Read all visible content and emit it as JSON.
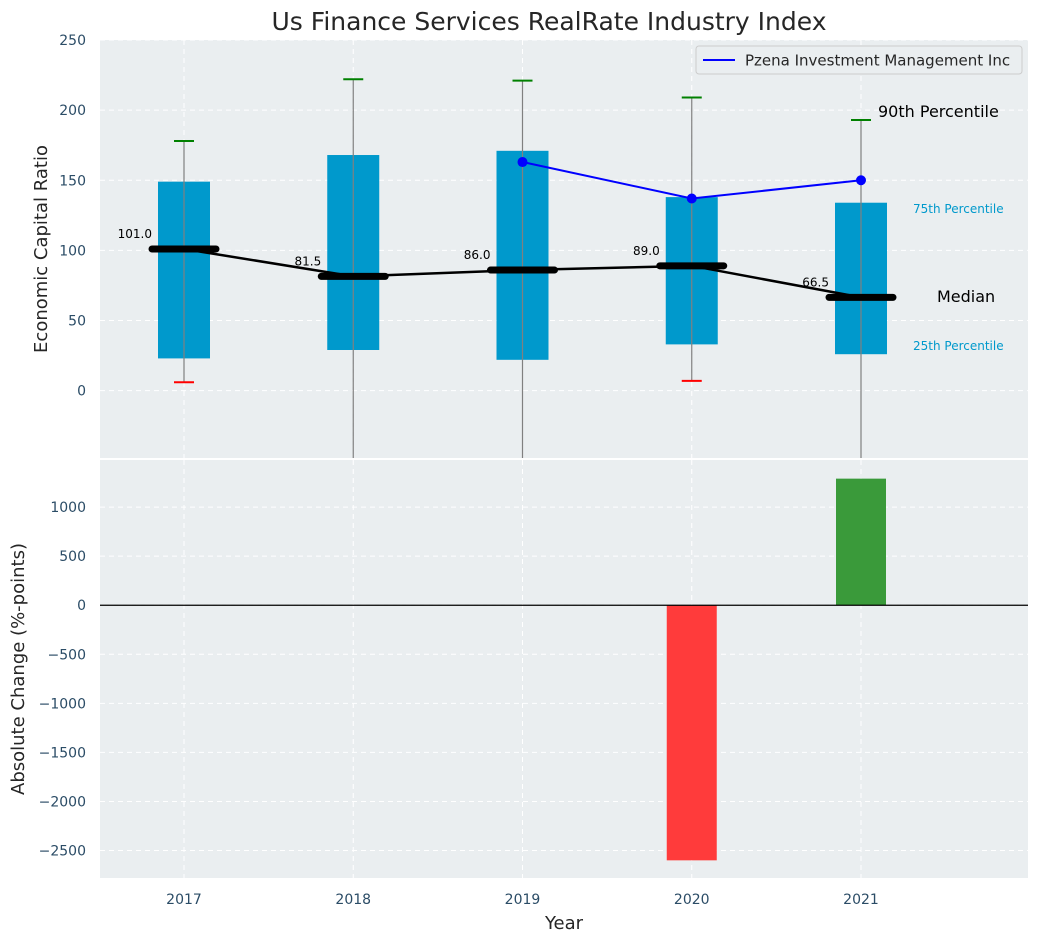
{
  "chart_data": [
    {
      "type": "box",
      "title": "Us Finance Services RealRate Industry Index",
      "ylabel": "Economic Capital Ratio",
      "xlabel": "",
      "ylim": [
        -48,
        250
      ],
      "yticks": [
        0,
        50,
        100,
        150,
        200,
        250
      ],
      "ytick_labels": [
        "0",
        "50",
        "100",
        "150",
        "200",
        "250"
      ],
      "grid": true,
      "legend_position": "top-right",
      "categories": [
        "2017",
        "2018",
        "2019",
        "2020",
        "2021"
      ],
      "percentile_10": [
        6,
        -48,
        -48,
        7,
        -48
      ],
      "percentile_25": [
        23,
        29,
        22,
        33,
        26
      ],
      "median": [
        101.0,
        81.5,
        86.0,
        89.0,
        66.5
      ],
      "median_labels": [
        "101.0",
        "81.5",
        "86.0",
        "89.0",
        "66.5"
      ],
      "percentile_75": [
        149,
        168,
        171,
        138,
        134
      ],
      "percentile_90": [
        178,
        222,
        221,
        209,
        193
      ],
      "series": [
        {
          "name": "Pzena Investment Management Inc",
          "x": [
            "2019",
            "2020",
            "2021"
          ],
          "values": [
            163,
            137,
            150
          ],
          "color": "#0000ff"
        }
      ],
      "annotations": {
        "p90": "90th Percentile",
        "p75": "75th Percentile",
        "median": "Median",
        "p25": "25th Percentile"
      },
      "colors": {
        "box": "#0099cc",
        "whisker": "#808080",
        "median": "#000000",
        "cap_high": "#008000",
        "cap_low": "#ff0000",
        "background": "#eaeef0",
        "grid": "#ffffff",
        "tick_text": "#2b4c66"
      }
    },
    {
      "type": "bar",
      "xlabel": "Year",
      "ylabel": "Absolute Change (%-points)",
      "ylim": [
        -2780,
        1480
      ],
      "yticks": [
        -2500,
        -2000,
        -1500,
        -1000,
        -500,
        0,
        500,
        1000
      ],
      "ytick_labels": [
        "−2500",
        "−2000",
        "−1500",
        "−1000",
        "−500",
        "0",
        "500",
        "1000"
      ],
      "grid": true,
      "categories": [
        "2017",
        "2018",
        "2019",
        "2020",
        "2021"
      ],
      "values": [
        0,
        0,
        0,
        -2600,
        1290
      ],
      "colors": {
        "positive": "#3a9a3a",
        "negative": "#ff3b3b"
      }
    }
  ]
}
